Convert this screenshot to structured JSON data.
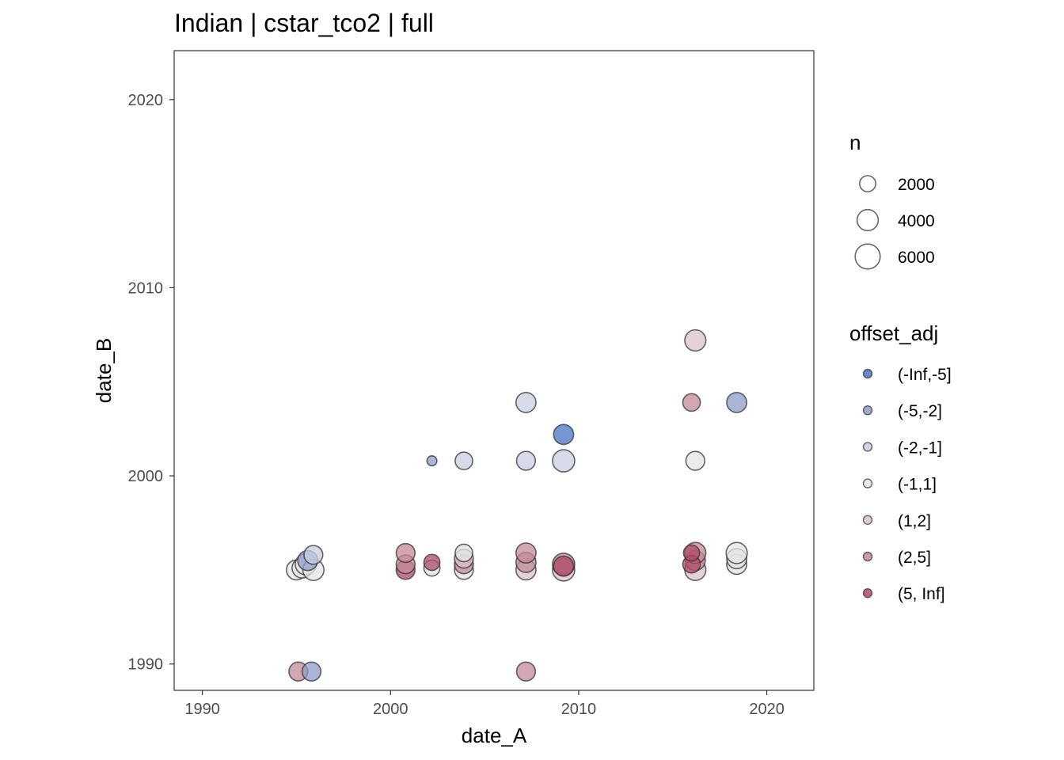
{
  "chart_data": {
    "type": "scatter",
    "title": "Indian | cstar_tco2 | full",
    "xlabel": "date_A",
    "ylabel": "date_B",
    "xlim": [
      1988.5,
      2022.5
    ],
    "ylim": [
      1988.6,
      2022.6
    ],
    "x_ticks": [
      1990,
      2000,
      2010,
      2020
    ],
    "y_ticks": [
      1990,
      2000,
      2010,
      2020
    ],
    "size_legend": {
      "title": "n",
      "entries": [
        {
          "label": "2000",
          "value": 2000
        },
        {
          "label": "4000",
          "value": 4000
        },
        {
          "label": "6000",
          "value": 6000
        }
      ]
    },
    "color_legend": {
      "title": "offset_adj",
      "entries": [
        {
          "label": "(-Inf,-5]",
          "color": "#4a73c2"
        },
        {
          "label": "(-5,-2]",
          "color": "#8d9bc8"
        },
        {
          "label": "(-2,-1]",
          "color": "#c9cfe1"
        },
        {
          "label": "(-1,1]",
          "color": "#e4e4e4"
        },
        {
          "label": "(1,2]",
          "color": "#dbc3c8"
        },
        {
          "label": "(2,5]",
          "color": "#c48a98"
        },
        {
          "label": "(5, Inf]",
          "color": "#ad4a68"
        }
      ]
    },
    "points": [
      {
        "x": 1995.1,
        "y": 1989.6,
        "n": 3000,
        "cat": "(2,5]"
      },
      {
        "x": 1995.8,
        "y": 1989.6,
        "n": 3000,
        "cat": "(-5,-2]"
      },
      {
        "x": 2007.2,
        "y": 1989.6,
        "n": 3000,
        "cat": "(2,5]"
      },
      {
        "x": 1995.0,
        "y": 1995.0,
        "n": 3500,
        "cat": "(-1,1]"
      },
      {
        "x": 1995.3,
        "y": 1995.1,
        "n": 3500,
        "cat": "(-1,1]"
      },
      {
        "x": 1995.5,
        "y": 1995.3,
        "n": 4000,
        "cat": "(-1,1]"
      },
      {
        "x": 1995.9,
        "y": 1995.0,
        "n": 4000,
        "cat": "(-1,1]"
      },
      {
        "x": 1995.6,
        "y": 1995.5,
        "n": 3500,
        "cat": "(-5,-2]"
      },
      {
        "x": 1995.9,
        "y": 1995.8,
        "n": 3000,
        "cat": "(-2,-1]"
      },
      {
        "x": 2000.8,
        "y": 1995.0,
        "n": 3000,
        "cat": "(5, Inf]"
      },
      {
        "x": 2000.8,
        "y": 1995.3,
        "n": 3000,
        "cat": "(2,5]"
      },
      {
        "x": 2000.8,
        "y": 1995.9,
        "n": 3000,
        "cat": "(2,5]"
      },
      {
        "x": 2002.2,
        "y": 1995.1,
        "n": 2000,
        "cat": "(-1,1]"
      },
      {
        "x": 2002.2,
        "y": 1995.4,
        "n": 2000,
        "cat": "(5, Inf]"
      },
      {
        "x": 2002.2,
        "y": 2000.8,
        "n": 500,
        "cat": "(-5,-2]"
      },
      {
        "x": 2003.9,
        "y": 1995.0,
        "n": 3000,
        "cat": "(-1,1]"
      },
      {
        "x": 2003.9,
        "y": 1995.3,
        "n": 3000,
        "cat": "(2,5]"
      },
      {
        "x": 2003.9,
        "y": 1995.6,
        "n": 3000,
        "cat": "(1,2]"
      },
      {
        "x": 2003.9,
        "y": 1995.9,
        "n": 2500,
        "cat": "(-1,1]"
      },
      {
        "x": 2003.9,
        "y": 2000.8,
        "n": 2500,
        "cat": "(-2,-1]"
      },
      {
        "x": 2007.2,
        "y": 1995.0,
        "n": 3500,
        "cat": "(1,2]"
      },
      {
        "x": 2007.2,
        "y": 1995.4,
        "n": 3500,
        "cat": "(2,5]"
      },
      {
        "x": 2007.2,
        "y": 1995.9,
        "n": 3500,
        "cat": "(2,5]"
      },
      {
        "x": 2007.2,
        "y": 2000.8,
        "n": 3000,
        "cat": "(-2,-1]"
      },
      {
        "x": 2007.2,
        "y": 2003.9,
        "n": 3500,
        "cat": "(-2,-1]"
      },
      {
        "x": 2009.2,
        "y": 1995.0,
        "n": 4500,
        "cat": "(1,2]"
      },
      {
        "x": 2009.2,
        "y": 1995.3,
        "n": 4500,
        "cat": "(2,5]"
      },
      {
        "x": 2009.2,
        "y": 1995.2,
        "n": 3500,
        "cat": "(5, Inf]"
      },
      {
        "x": 2009.2,
        "y": 2000.8,
        "n": 4500,
        "cat": "(-2,-1]"
      },
      {
        "x": 2009.2,
        "y": 2002.2,
        "n": 3500,
        "cat": "(-Inf,-5]"
      },
      {
        "x": 2016.2,
        "y": 1995.0,
        "n": 4000,
        "cat": "(1,2]"
      },
      {
        "x": 2016.2,
        "y": 1995.5,
        "n": 3500,
        "cat": "(2,5]"
      },
      {
        "x": 2016.2,
        "y": 1995.9,
        "n": 4000,
        "cat": "(2,5]"
      },
      {
        "x": 2016.0,
        "y": 1995.3,
        "n": 2500,
        "cat": "(5, Inf]"
      },
      {
        "x": 2016.0,
        "y": 1995.9,
        "n": 2000,
        "cat": "(5, Inf]"
      },
      {
        "x": 2016.2,
        "y": 2000.8,
        "n": 3000,
        "cat": "(-1,1]"
      },
      {
        "x": 2016.0,
        "y": 2003.9,
        "n": 2500,
        "cat": "(2,5]"
      },
      {
        "x": 2016.2,
        "y": 2007.2,
        "n": 4000,
        "cat": "(1,2]"
      },
      {
        "x": 2018.4,
        "y": 1995.3,
        "n": 3500,
        "cat": "(-1,1]"
      },
      {
        "x": 2018.4,
        "y": 1995.6,
        "n": 3500,
        "cat": "(-1,1]"
      },
      {
        "x": 2018.4,
        "y": 1995.9,
        "n": 4000,
        "cat": "(-1,1]"
      },
      {
        "x": 2018.4,
        "y": 2003.9,
        "n": 3500,
        "cat": "(-5,-2]"
      }
    ]
  }
}
